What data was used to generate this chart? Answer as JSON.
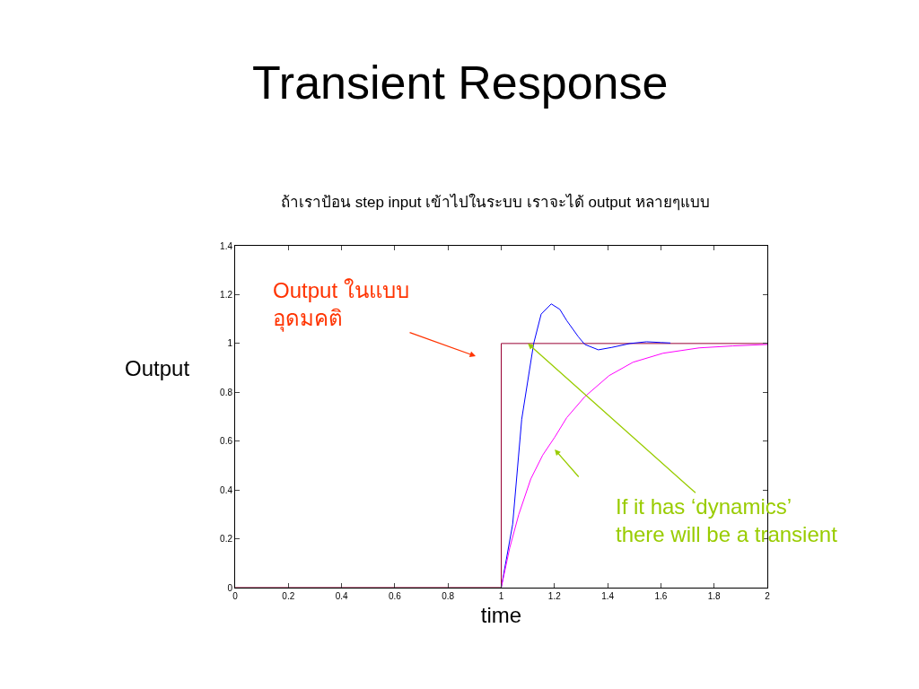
{
  "chart_data": {
    "type": "line",
    "title": "Transient Response",
    "subtitle": "ถ้าเราป้อน step input เข้าไปในระบบ เราจะได้ output หลายๆแบบ",
    "xlabel": "time",
    "ylabel": "Output",
    "xlim": [
      0,
      2
    ],
    "xticks": [
      0,
      0.2,
      0.4,
      0.6,
      0.8,
      1,
      1.2,
      1.4,
      1.6,
      1.8,
      2
    ],
    "ylim": [
      0,
      1.4
    ],
    "yticks": [
      0,
      0.2,
      0.4,
      0.6,
      0.8,
      1,
      1.2,
      1.4
    ],
    "grid": false,
    "marker": "none",
    "line_style": "solid",
    "series": [
      {
        "color": "#990033",
        "x": [
          0,
          1,
          1,
          2
        ],
        "values": [
          0,
          0,
          1,
          1
        ]
      },
      {
        "color": "#0000ff",
        "x": [
          1,
          1.043,
          1.077,
          1.122,
          1.15,
          1.188,
          1.22,
          1.246,
          1.29,
          1.314,
          1.365,
          1.416,
          1.484,
          1.546,
          1.6,
          1.636
        ],
        "values": [
          0,
          0.26,
          0.69,
          1.0,
          1.12,
          1.162,
          1.14,
          1.094,
          1.027,
          0.996,
          0.974,
          0.984,
          1.0,
          1.007,
          1.004,
          1.002
        ]
      },
      {
        "color": "#ff00ff",
        "x": [
          1,
          1.032,
          1.066,
          1.111,
          1.156,
          1.201,
          1.246,
          1.314,
          1.405,
          1.495,
          1.608,
          1.744,
          1.87,
          2
        ],
        "values": [
          0,
          0.163,
          0.3,
          0.445,
          0.543,
          0.616,
          0.696,
          0.782,
          0.868,
          0.923,
          0.96,
          0.982,
          0.99,
          0.996
        ]
      }
    ],
    "annotations": [
      "Output ในแบบ\nอุดมคติ",
      {
        "text": "If it has ‘dynamics’\nthere will be a transient",
        "x": 1.1,
        "y": 1.0
      }
    ]
  }
}
